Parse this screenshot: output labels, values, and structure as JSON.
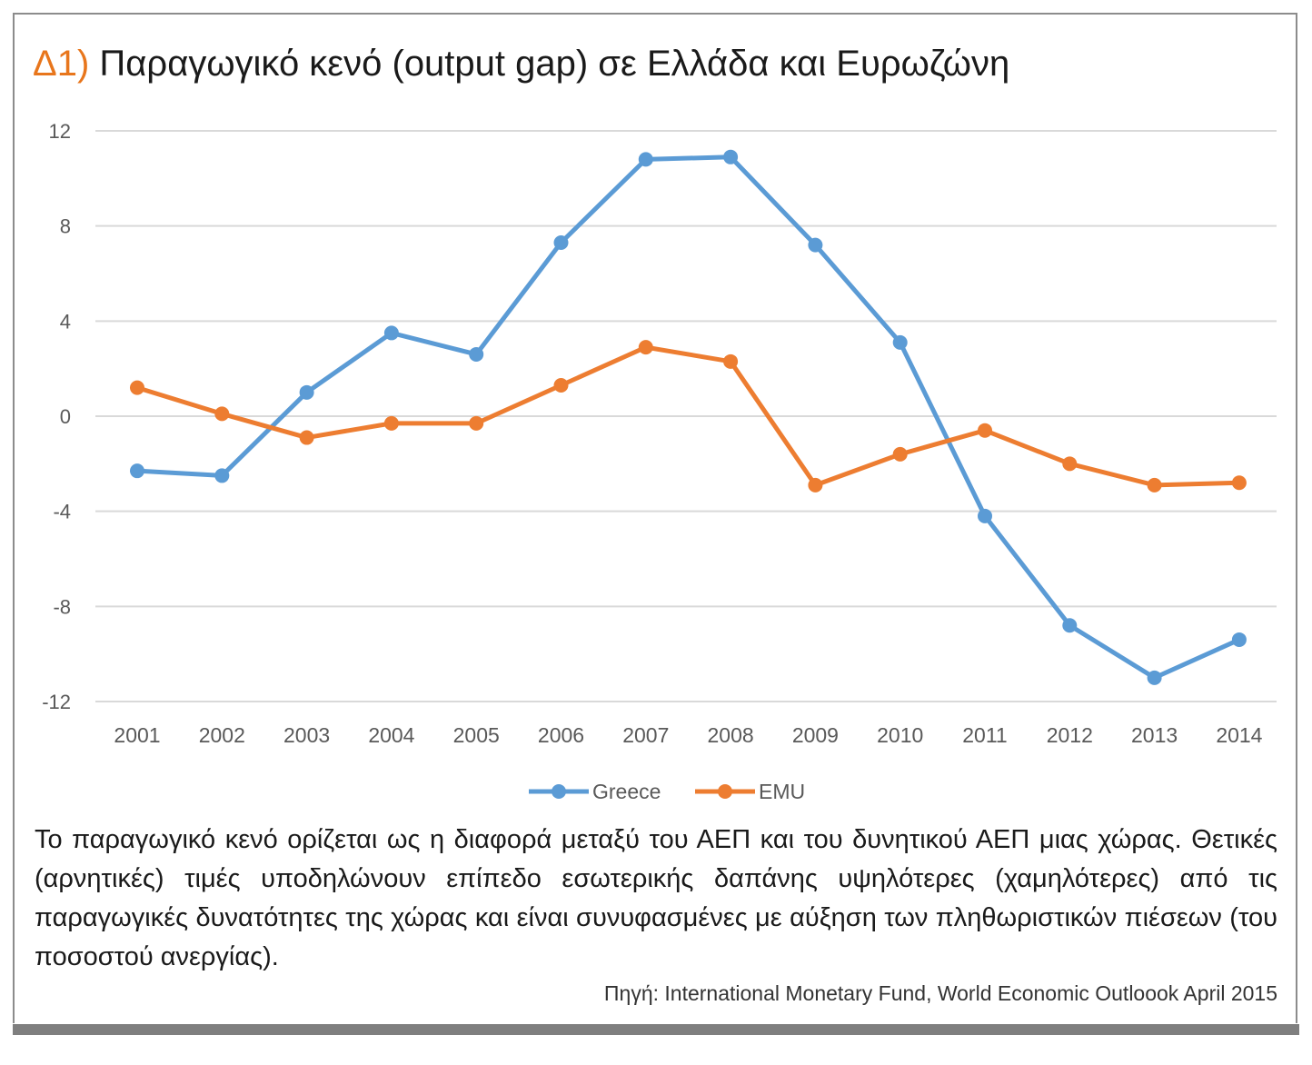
{
  "title": {
    "label": "Δ1)",
    "text": "Παραγωγικό κενό (output gap) σε Ελλάδα και Ευρωζώνη"
  },
  "description": "Το παραγωγικό κενό ορίζεται ως η διαφορά μεταξύ του ΑΕΠ και του δυνητικού ΑΕΠ μιας χώρας. Θετικές (αρνητικές) τιμές υποδηλώνουν επίπεδο εσωτερικής δαπάνης υψηλότερες (χαμηλότερες) από τις παραγωγικές δυνατότητες της χώρας και είναι συνυφασμένες με αύξηση των πληθωριστικών πιέσεων (του ποσοστού ανεργίας).",
  "source": "Πηγή: International Monetary Fund, World Economic Outloook April 2015",
  "chart_data": {
    "type": "line",
    "title": "",
    "xlabel": "",
    "ylabel": "",
    "x": [
      "2001",
      "2002",
      "2003",
      "2004",
      "2005",
      "2006",
      "2007",
      "2008",
      "2009",
      "2010",
      "2011",
      "2012",
      "2013",
      "2014"
    ],
    "ylim": [
      -12,
      12
    ],
    "yticks": [
      12,
      8,
      4,
      0,
      -4,
      -8,
      -12
    ],
    "grid": true,
    "legend": "bottom",
    "series": [
      {
        "name": "Greece",
        "color": "#5b9bd5",
        "values": [
          -2.3,
          -2.5,
          1.0,
          3.5,
          2.6,
          7.3,
          10.8,
          10.9,
          7.2,
          3.1,
          -4.2,
          -8.8,
          -11.0,
          -9.4
        ]
      },
      {
        "name": "EMU",
        "color": "#ed7d31",
        "values": [
          1.2,
          0.1,
          -0.9,
          -0.3,
          -0.3,
          1.3,
          2.9,
          2.3,
          -2.9,
          -1.6,
          -0.6,
          -2.0,
          -2.9,
          -2.8
        ]
      }
    ]
  }
}
